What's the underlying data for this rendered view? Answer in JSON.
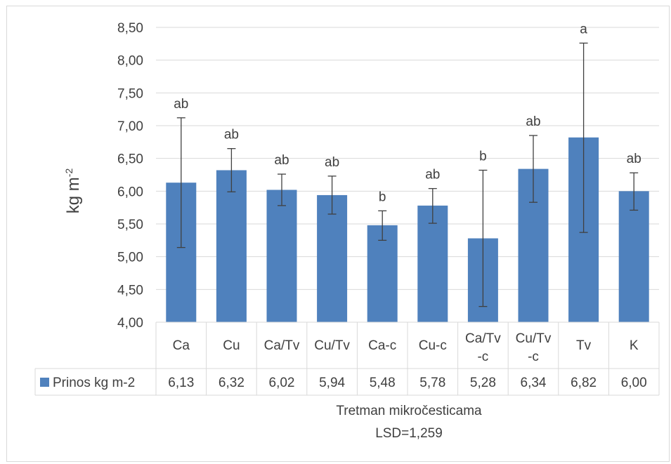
{
  "chart_data": {
    "type": "bar",
    "categories": [
      [
        "Ca"
      ],
      [
        "Cu"
      ],
      [
        "Ca/Tv"
      ],
      [
        "Cu/Tv"
      ],
      [
        "Ca-c"
      ],
      [
        "Cu-c"
      ],
      [
        "Ca/Tv",
        "-c"
      ],
      [
        "Cu/Tv",
        "-c"
      ],
      [
        "Tv"
      ],
      [
        "K"
      ]
    ],
    "series": [
      {
        "name": "Prinos kg m-2",
        "values": [
          6.13,
          6.32,
          6.02,
          5.94,
          5.48,
          5.78,
          5.28,
          6.34,
          6.82,
          6.0
        ],
        "value_labels": [
          "6,13",
          "6,32",
          "6,02",
          "5,94",
          "5,48",
          "5,78",
          "5,28",
          "6,34",
          "6,82",
          "6,00"
        ],
        "error_low": [
          5.14,
          5.99,
          5.78,
          5.65,
          5.25,
          5.51,
          4.24,
          5.83,
          5.37,
          5.71
        ],
        "error_high": [
          7.12,
          6.65,
          6.26,
          6.23,
          5.7,
          6.04,
          6.32,
          6.85,
          8.26,
          6.28
        ],
        "significance": [
          "ab",
          "ab",
          "ab",
          "ab",
          "b",
          "ab",
          "b",
          "ab",
          "a",
          "ab"
        ],
        "color": "#4f81bd"
      }
    ],
    "ylim": [
      4.0,
      8.5
    ],
    "yticks": [
      "4,00",
      "4,50",
      "5,00",
      "5,50",
      "6,00",
      "6,50",
      "7,00",
      "7,50",
      "8,00",
      "8,50"
    ],
    "ylabel": "kg m",
    "ylabel_sup": "-2",
    "xlabel": "Tretman mikročesticama",
    "xlabel_note": "LSD=1,259",
    "grid": true,
    "legend": "data-table",
    "gridline_color": "#d9d9d9",
    "error_bar_color": "#404040"
  }
}
